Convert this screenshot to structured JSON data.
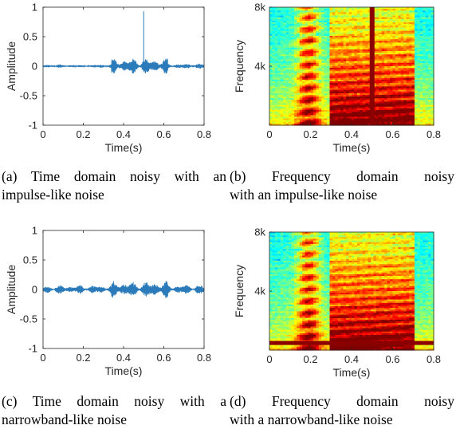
{
  "charts": {
    "a": {
      "caption_line1": "(a) Time domain noisy with an",
      "caption_line2": "impulse-like noise"
    },
    "b": {
      "caption_line1": "(b)  Frequency  domain  noisy",
      "caption_line2": "with an impulse-like noise"
    },
    "c": {
      "caption_line1": "(c)  Time domain noisy with a",
      "caption_line2": "narrowband-like noise"
    },
    "d": {
      "caption_line1": "(d)  Frequency  domain  noisy",
      "caption_line2": "with a narrowband-like noise"
    }
  },
  "chart_data": [
    {
      "id": "a",
      "type": "line",
      "xlabel": "Time(s)",
      "ylabel": "Amplitude",
      "xlim": [
        0,
        0.8
      ],
      "ylim": [
        -1,
        1
      ],
      "xticks": [
        "0",
        "0.2",
        "0.4",
        "0.6",
        "0.8"
      ],
      "yticks": [
        "1",
        "0.5",
        "0",
        "-0.5",
        "-1"
      ],
      "line_color": "#2b7bba",
      "segments": [
        {
          "start": 0.0,
          "end": 0.15,
          "amplitude": 0.03
        },
        {
          "start": 0.15,
          "end": 0.25,
          "amplitude": 0.02
        },
        {
          "start": 0.28,
          "end": 0.34,
          "amplitude": 0.04
        },
        {
          "start": 0.34,
          "end": 0.62,
          "amplitude": 0.14
        },
        {
          "start": 0.62,
          "end": 0.8,
          "amplitude": 0.05
        }
      ],
      "impulse": {
        "x": 0.5,
        "y": 0.93
      }
    },
    {
      "id": "b",
      "type": "heatmap",
      "xlabel": "Time(s)",
      "ylabel": "Frequency",
      "xlim": [
        0,
        0.8
      ],
      "ylim": [
        0,
        8000
      ],
      "xticks": [
        "0",
        "0.2",
        "0.4",
        "0.6",
        "0.8"
      ],
      "yticks": [
        "8k",
        "4k"
      ],
      "colormap": "jet",
      "noise": {
        "kind": "impulse",
        "x": 0.5,
        "color": "#8b0000"
      }
    },
    {
      "id": "c",
      "type": "line",
      "xlabel": "Time(s)",
      "ylabel": "Amplitude",
      "xlim": [
        0,
        0.8
      ],
      "ylim": [
        -1,
        1
      ],
      "xticks": [
        "0",
        "0.2",
        "0.4",
        "0.6",
        "0.8"
      ],
      "yticks": [
        "1",
        "0.5",
        "0",
        "-0.5",
        "-1"
      ],
      "line_color": "#2b7bba",
      "segments": [
        {
          "start": 0.0,
          "end": 0.34,
          "amplitude": 0.08
        },
        {
          "start": 0.34,
          "end": 0.62,
          "amplitude": 0.15
        },
        {
          "start": 0.62,
          "end": 0.8,
          "amplitude": 0.09
        }
      ]
    },
    {
      "id": "d",
      "type": "heatmap",
      "xlabel": "Time(s)",
      "ylabel": "Frequency",
      "xlim": [
        0,
        0.8
      ],
      "ylim": [
        0,
        8000
      ],
      "xticks": [
        "0",
        "0.2",
        "0.4",
        "0.6",
        "0.8"
      ],
      "yticks": [
        "8k",
        "4k"
      ],
      "colormap": "jet",
      "noise": {
        "kind": "narrowband",
        "y": 0.06,
        "color": "#8b0000"
      }
    }
  ]
}
